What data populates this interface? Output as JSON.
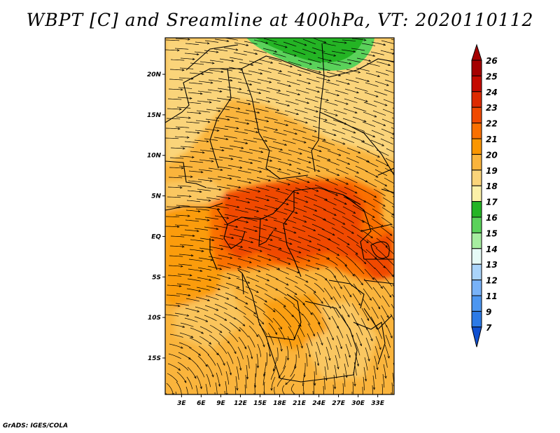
{
  "title": "WBPT [C] and Sreamline at 400hPa, VT: 2020110112",
  "credit": "GrADS: IGES/COLA",
  "map": {
    "lon_min": 0.5,
    "lon_max": 35.5,
    "lat_min": -19.5,
    "lat_max": 24.5,
    "lon_ticks": [
      {
        "value": 3,
        "label": "3E"
      },
      {
        "value": 6,
        "label": "6E"
      },
      {
        "value": 9,
        "label": "9E"
      },
      {
        "value": 12,
        "label": "12E"
      },
      {
        "value": 15,
        "label": "15E"
      },
      {
        "value": 18,
        "label": "18E"
      },
      {
        "value": 21,
        "label": "21E"
      },
      {
        "value": 24,
        "label": "24E"
      },
      {
        "value": 27,
        "label": "27E"
      },
      {
        "value": 30,
        "label": "30E"
      },
      {
        "value": 33,
        "label": "33E"
      }
    ],
    "lat_ticks": [
      {
        "value": 20,
        "label": "20N"
      },
      {
        "value": 15,
        "label": "15N"
      },
      {
        "value": 10,
        "label": "10N"
      },
      {
        "value": 5,
        "label": "5N"
      },
      {
        "value": 0,
        "label": "EQ"
      },
      {
        "value": -5,
        "label": "5S"
      },
      {
        "value": -10,
        "label": "10S"
      },
      {
        "value": -15,
        "label": "15S"
      }
    ]
  },
  "colorbar": {
    "levels": [
      {
        "label": "26",
        "color": "#a50000"
      },
      {
        "label": "25",
        "color": "#c40a00"
      },
      {
        "label": "24",
        "color": "#dd2a00"
      },
      {
        "label": "23",
        "color": "#f04a00"
      },
      {
        "label": "22",
        "color": "#fa7000"
      },
      {
        "label": "21",
        "color": "#fb9600"
      },
      {
        "label": "20",
        "color": "#fab43c"
      },
      {
        "label": "19",
        "color": "#fad47a"
      },
      {
        "label": "18",
        "color": "#fbf0a8"
      },
      {
        "label": "17",
        "color": "#24b424"
      },
      {
        "label": "16",
        "color": "#5ad25a"
      },
      {
        "label": "15",
        "color": "#a6eda0"
      },
      {
        "label": "14",
        "color": "#e6faf6"
      },
      {
        "label": "13",
        "color": "#aad4fa"
      },
      {
        "label": "12",
        "color": "#78b2f8"
      },
      {
        "label": "11",
        "color": "#4c96f0"
      },
      {
        "label": "9",
        "color": "#2c7ae6"
      },
      {
        "label": "7",
        "color": "#1050d0"
      }
    ]
  },
  "regions": [
    {
      "name": "green-zone-north",
      "color": "#5ad25a"
    },
    {
      "name": "yellow-zone-north",
      "color": "#fad47a"
    },
    {
      "name": "orange-zone",
      "color": "#fab43c"
    },
    {
      "name": "red-orange-core",
      "color": "#f04a00"
    }
  ]
}
